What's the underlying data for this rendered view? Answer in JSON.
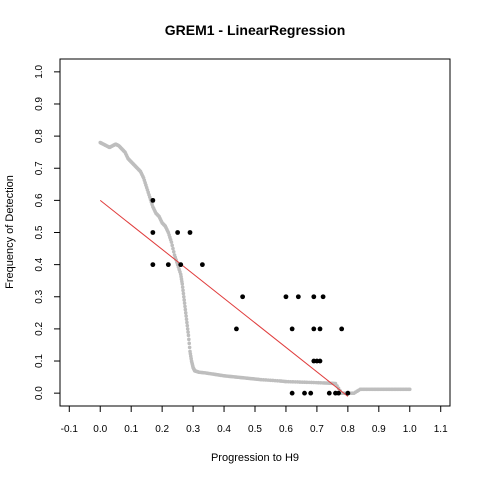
{
  "chart_data": {
    "type": "scatter",
    "title": "GREM1 - LinearRegression",
    "xlabel": "Progression to H9",
    "ylabel": "Frequency of Detection",
    "xlim": [
      -0.13,
      1.13
    ],
    "ylim": [
      -0.04,
      1.04
    ],
    "x_ticks": [
      -0.1,
      0.0,
      0.1,
      0.2,
      0.3,
      0.4,
      0.5,
      0.6,
      0.7,
      0.8,
      0.9,
      1.0,
      1.1
    ],
    "x_tick_labels": [
      "-0.1",
      "0.0",
      "0.1",
      "0.2",
      "0.3",
      "0.4",
      "0.5",
      "0.6",
      "0.7",
      "0.8",
      "0.9",
      "1.0",
      "1.1"
    ],
    "y_ticks": [
      0.0,
      0.1,
      0.2,
      0.3,
      0.4,
      0.5,
      0.6,
      0.7,
      0.8,
      0.9,
      1.0
    ],
    "y_tick_labels": [
      "0.0",
      "0.1",
      "0.2",
      "0.3",
      "0.4",
      "0.5",
      "0.6",
      "0.7",
      "0.8",
      "0.9",
      "1.0"
    ],
    "grid": false,
    "series": [
      {
        "role": "smooth",
        "color": "#bebebe",
        "x": [
          0.0,
          0.01,
          0.02,
          0.03,
          0.04,
          0.05,
          0.06,
          0.07,
          0.08,
          0.09,
          0.1,
          0.11,
          0.12,
          0.13,
          0.14,
          0.15,
          0.16,
          0.17,
          0.18,
          0.19,
          0.2,
          0.21,
          0.22,
          0.23,
          0.24,
          0.25,
          0.26,
          0.265,
          0.27,
          0.275,
          0.28,
          0.285,
          0.29,
          0.295,
          0.3,
          0.305,
          0.31,
          0.32,
          0.34,
          0.36,
          0.38,
          0.4,
          0.42,
          0.44,
          0.46,
          0.48,
          0.5,
          0.52,
          0.55,
          0.58,
          0.6,
          0.63,
          0.66,
          0.69,
          0.72,
          0.74,
          0.76,
          0.78,
          0.8,
          0.82,
          0.84,
          0.86,
          0.88,
          0.9,
          0.92,
          0.94,
          0.96,
          0.98,
          1.0
        ],
        "y": [
          0.78,
          0.775,
          0.77,
          0.765,
          0.77,
          0.775,
          0.77,
          0.76,
          0.75,
          0.73,
          0.72,
          0.71,
          0.7,
          0.69,
          0.67,
          0.64,
          0.61,
          0.58,
          0.56,
          0.55,
          0.53,
          0.52,
          0.5,
          0.47,
          0.43,
          0.4,
          0.37,
          0.34,
          0.3,
          0.26,
          0.22,
          0.18,
          0.13,
          0.1,
          0.08,
          0.07,
          0.068,
          0.065,
          0.063,
          0.06,
          0.057,
          0.054,
          0.052,
          0.05,
          0.048,
          0.046,
          0.044,
          0.042,
          0.04,
          0.038,
          0.036,
          0.035,
          0.034,
          0.033,
          0.032,
          0.031,
          0.03,
          0.0,
          0.0,
          0.0,
          0.012,
          0.012,
          0.012,
          0.012,
          0.012,
          0.012,
          0.012,
          0.012,
          0.012
        ]
      },
      {
        "role": "observed",
        "color": "#000000",
        "x": [
          0.17,
          0.17,
          0.17,
          0.22,
          0.25,
          0.26,
          0.29,
          0.33,
          0.44,
          0.46,
          0.6,
          0.62,
          0.62,
          0.64,
          0.66,
          0.68,
          0.69,
          0.69,
          0.69,
          0.7,
          0.71,
          0.71,
          0.72,
          0.74,
          0.76,
          0.77,
          0.78,
          0.8
        ],
        "y": [
          0.6,
          0.5,
          0.4,
          0.4,
          0.5,
          0.4,
          0.5,
          0.4,
          0.2,
          0.3,
          0.3,
          0.2,
          0.0,
          0.3,
          0.0,
          0.0,
          0.3,
          0.2,
          0.1,
          0.1,
          0.2,
          0.1,
          0.3,
          0.0,
          0.0,
          0.0,
          0.2,
          0.0
        ]
      },
      {
        "role": "fit",
        "color": "#e03c3c",
        "x": [
          0.0,
          0.8
        ],
        "y": [
          0.6,
          -0.01
        ]
      }
    ]
  }
}
